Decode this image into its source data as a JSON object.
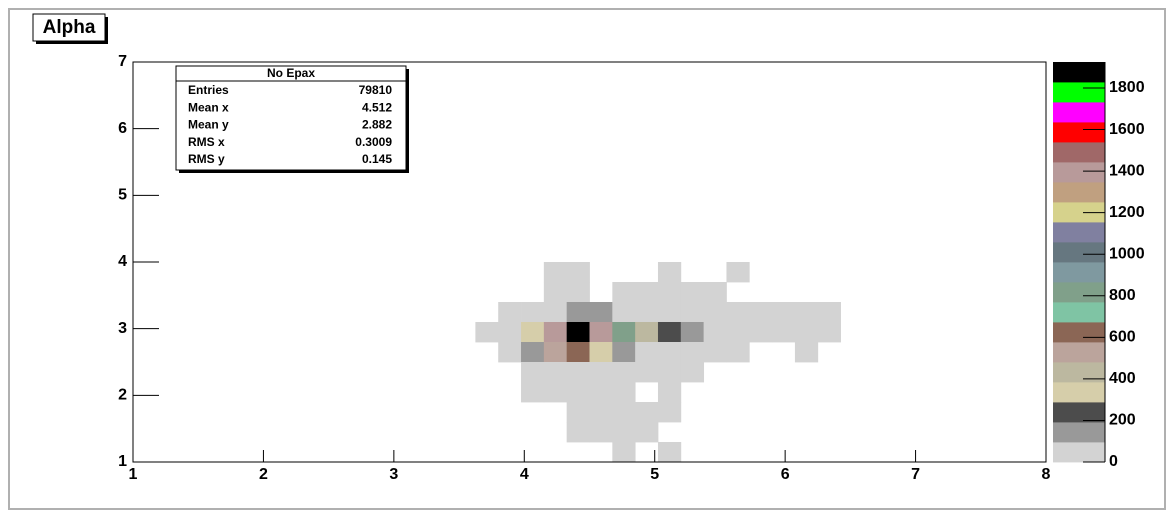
{
  "chart_data": {
    "type": "heatmap",
    "title": "Alpha",
    "xlim": [
      1,
      8
    ],
    "xticks": [
      1,
      2,
      3,
      4,
      5,
      6,
      7,
      8
    ],
    "ylim": [
      1,
      7
    ],
    "yticks": [
      1,
      2,
      3,
      4,
      5,
      6,
      7
    ],
    "zlim": [
      0,
      1925
    ],
    "zticks": [
      0,
      200,
      400,
      600,
      800,
      1000,
      1200,
      1400,
      1600,
      1800
    ],
    "nbins_x": 40,
    "nbins_y": 20,
    "palette": [
      "#d3d3d3",
      "#999999",
      "#4c4c4c",
      "#d6ceaa",
      "#bcb8a0",
      "#bba49c",
      "#8b6655",
      "#7fc4a4",
      "#80a08a",
      "#7f99a0",
      "#667780",
      "#8080a0",
      "#d6d28c",
      "#c0a080",
      "#b89a9a",
      "#a06868",
      "#ff0000",
      "#ff00ff",
      "#00ff00",
      "#000000"
    ],
    "x": [
      4.2375,
      4.4125,
      5.1125,
      5.6375,
      4.2375,
      4.4125,
      4.7625,
      4.9375,
      5.1125,
      5.2875,
      5.4625,
      3.8875,
      4.0625,
      4.2375,
      4.4125,
      4.5875,
      4.7625,
      4.9375,
      5.1125,
      5.2875,
      5.4625,
      5.6375,
      5.8125,
      5.9875,
      6.1625,
      6.3375,
      3.7125,
      3.8875,
      4.0625,
      4.2375,
      4.4125,
      4.5875,
      4.7625,
      4.9375,
      5.1125,
      5.2875,
      5.4625,
      5.6375,
      5.8125,
      5.9875,
      6.1625,
      6.3375,
      3.8875,
      4.0625,
      4.2375,
      4.4125,
      4.5875,
      4.7625,
      4.9375,
      5.1125,
      5.2875,
      5.4625,
      5.6375,
      6.1625,
      4.0625,
      4.2375,
      4.4125,
      4.5875,
      4.7625,
      4.9375,
      5.1125,
      5.2875,
      4.0625,
      4.2375,
      4.4125,
      4.5875,
      4.7625,
      5.1125,
      4.4125,
      4.5875,
      4.7625,
      4.9375,
      5.1125,
      4.4125,
      4.5875,
      4.7625,
      4.9375,
      4.7625,
      5.1125
    ],
    "y": [
      3.85,
      3.85,
      3.85,
      3.85,
      3.55,
      3.55,
      3.55,
      3.55,
      3.55,
      3.55,
      3.55,
      3.25,
      3.25,
      3.25,
      3.25,
      3.25,
      3.25,
      3.25,
      3.25,
      3.25,
      3.25,
      3.25,
      3.25,
      3.25,
      3.25,
      3.25,
      2.95,
      2.95,
      2.95,
      2.95,
      2.95,
      2.95,
      2.95,
      2.95,
      2.95,
      2.95,
      2.95,
      2.95,
      2.95,
      2.95,
      2.95,
      2.95,
      2.65,
      2.65,
      2.65,
      2.65,
      2.65,
      2.65,
      2.65,
      2.65,
      2.65,
      2.65,
      2.65,
      2.65,
      2.35,
      2.35,
      2.35,
      2.35,
      2.35,
      2.35,
      2.35,
      2.35,
      2.05,
      2.05,
      2.05,
      2.05,
      2.05,
      2.05,
      1.75,
      1.75,
      1.75,
      1.75,
      1.75,
      1.45,
      1.45,
      1.45,
      1.45,
      1.15,
      1.15
    ],
    "values": [
      50,
      50,
      50,
      50,
      50,
      50,
      50,
      50,
      50,
      50,
      50,
      50,
      50,
      50,
      140,
      140,
      50,
      50,
      50,
      50,
      50,
      50,
      50,
      50,
      50,
      50,
      50,
      50,
      340,
      1400,
      1900,
      1400,
      820,
      430,
      240,
      140,
      50,
      50,
      50,
      50,
      50,
      50,
      50,
      140,
      530,
      620,
      340,
      140,
      50,
      50,
      50,
      50,
      50,
      50,
      50,
      50,
      50,
      50,
      50,
      50,
      50,
      50,
      50,
      50,
      50,
      50,
      50,
      50,
      50,
      50,
      50,
      50,
      50,
      50,
      50,
      50,
      50,
      50,
      50
    ],
    "stats": {
      "title": "No Epax",
      "rows": [
        [
          "Entries",
          79810
        ],
        [
          "Mean x",
          4.512
        ],
        [
          "Mean y",
          2.882
        ],
        [
          "RMS x",
          0.3009
        ],
        [
          "RMS y",
          0.145
        ]
      ]
    }
  }
}
